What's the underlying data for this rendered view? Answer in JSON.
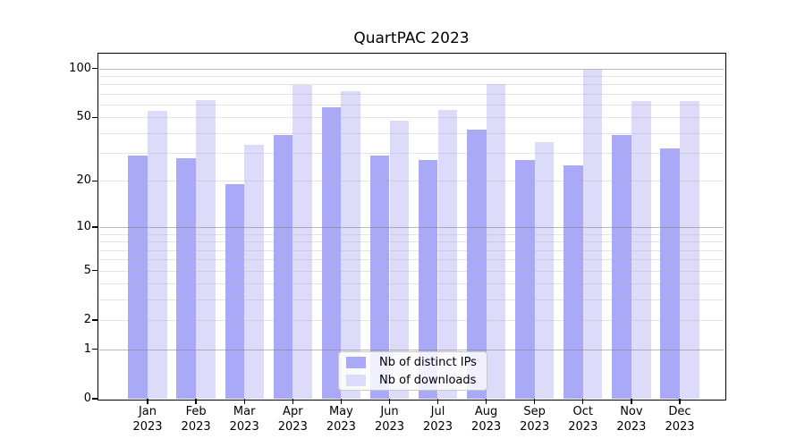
{
  "chart_data": {
    "type": "bar",
    "title": "QuartPAC 2023",
    "categories": [
      "Jan",
      "Feb",
      "Mar",
      "Apr",
      "May",
      "Jun",
      "Jul",
      "Aug",
      "Sep",
      "Oct",
      "Nov",
      "Dec"
    ],
    "category_year": "2023",
    "series": [
      {
        "name": "Nb of distinct IPs",
        "color": "#a9a9f8",
        "values": [
          29,
          28,
          19,
          39,
          58,
          29,
          27,
          42,
          27,
          25,
          39,
          32
        ]
      },
      {
        "name": "Nb of downloads",
        "color": "#dcdcfa",
        "values": [
          55,
          64,
          34,
          79,
          73,
          48,
          56,
          80,
          35,
          98,
          63,
          63
        ]
      }
    ],
    "yscale": "log1p",
    "ylim": [
      0,
      123
    ],
    "yticks": [
      0,
      1,
      2,
      5,
      10,
      20,
      50,
      100
    ],
    "grid": {
      "major_values": [
        1,
        10,
        100
      ],
      "minor_values": [
        2,
        3,
        4,
        5,
        6,
        7,
        8,
        9,
        20,
        30,
        40,
        50,
        60,
        70,
        80,
        90
      ],
      "major_color": "#b3b3b3",
      "minor_color": "#e5e5e5"
    },
    "legend_position": "lower center"
  }
}
